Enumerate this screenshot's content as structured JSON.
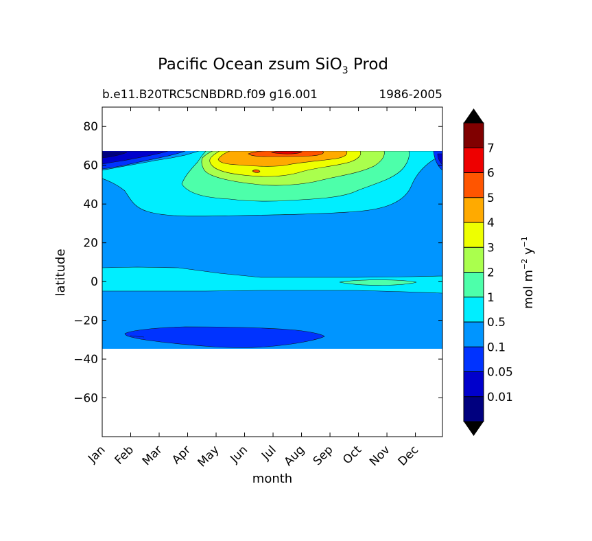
{
  "chart_data": {
    "type": "contourf",
    "title_main": "Pacific Ocean zsum SiO",
    "title_sub": "3",
    "title_tail": " Prod",
    "subtitle_left": "b.e11.B20TRC5CNBDRD.f09 g16.001",
    "subtitle_right": "1986-2005",
    "xlabel": "month",
    "ylabel": "latitude",
    "x_ticks": [
      "Jan",
      "Feb",
      "Mar",
      "Apr",
      "May",
      "Jun",
      "Jul",
      "Aug",
      "Sep",
      "Oct",
      "Nov",
      "Dec"
    ],
    "x_range": [
      1,
      12.95
    ],
    "ylim": [
      -80,
      90
    ],
    "y_ticks": [
      80,
      60,
      40,
      20,
      0,
      -20,
      -40,
      -60
    ],
    "y_tick_labels": [
      "80",
      "60",
      "40",
      "20",
      "0",
      "−20",
      "−40",
      "−60"
    ],
    "data_extent_lat": [
      -34,
      67
    ],
    "colorbar": {
      "label_main": "mol m",
      "label_exp1": "−2",
      "label_mid": " y",
      "label_exp2": "−1",
      "levels": [
        "0.01",
        "0.05",
        "0.1",
        "0.5",
        "1",
        "2",
        "3",
        "4",
        "5",
        "6",
        "7"
      ],
      "colors": [
        "#00007f",
        "#0000cc",
        "#0033ff",
        "#0095ff",
        "#00eeff",
        "#4dffaa",
        "#aaff4d",
        "#eeff00",
        "#ffaa00",
        "#ff5500",
        "#ee0000",
        "#800000"
      ],
      "extend": "both"
    },
    "regions": [
      {
        "level": "0.1 to 0.5",
        "description": "background over most of the domain"
      },
      {
        "level": "0.5 to 1",
        "description": "equatorial band near 0 latitude and subpolar North Pacific band 35-60N"
      },
      {
        "level": "1 to 2",
        "description": "North Pacific 45-62N, Apr to Oct; small patch near equator Sep-Oct"
      },
      {
        "level": "2 to 5",
        "description": "North Pacific 55-67N, May to Sep"
      },
      {
        "level": "5 to 7",
        "description": "peak near 65N in Jun-Jul"
      },
      {
        "level": "0.05 to 0.1",
        "description": "South Pacific subtropical gyre near 28S, Feb to Sep"
      },
      {
        "level": "below 0.05",
        "description": "high latitude north edge in Jan and Dec"
      }
    ]
  }
}
